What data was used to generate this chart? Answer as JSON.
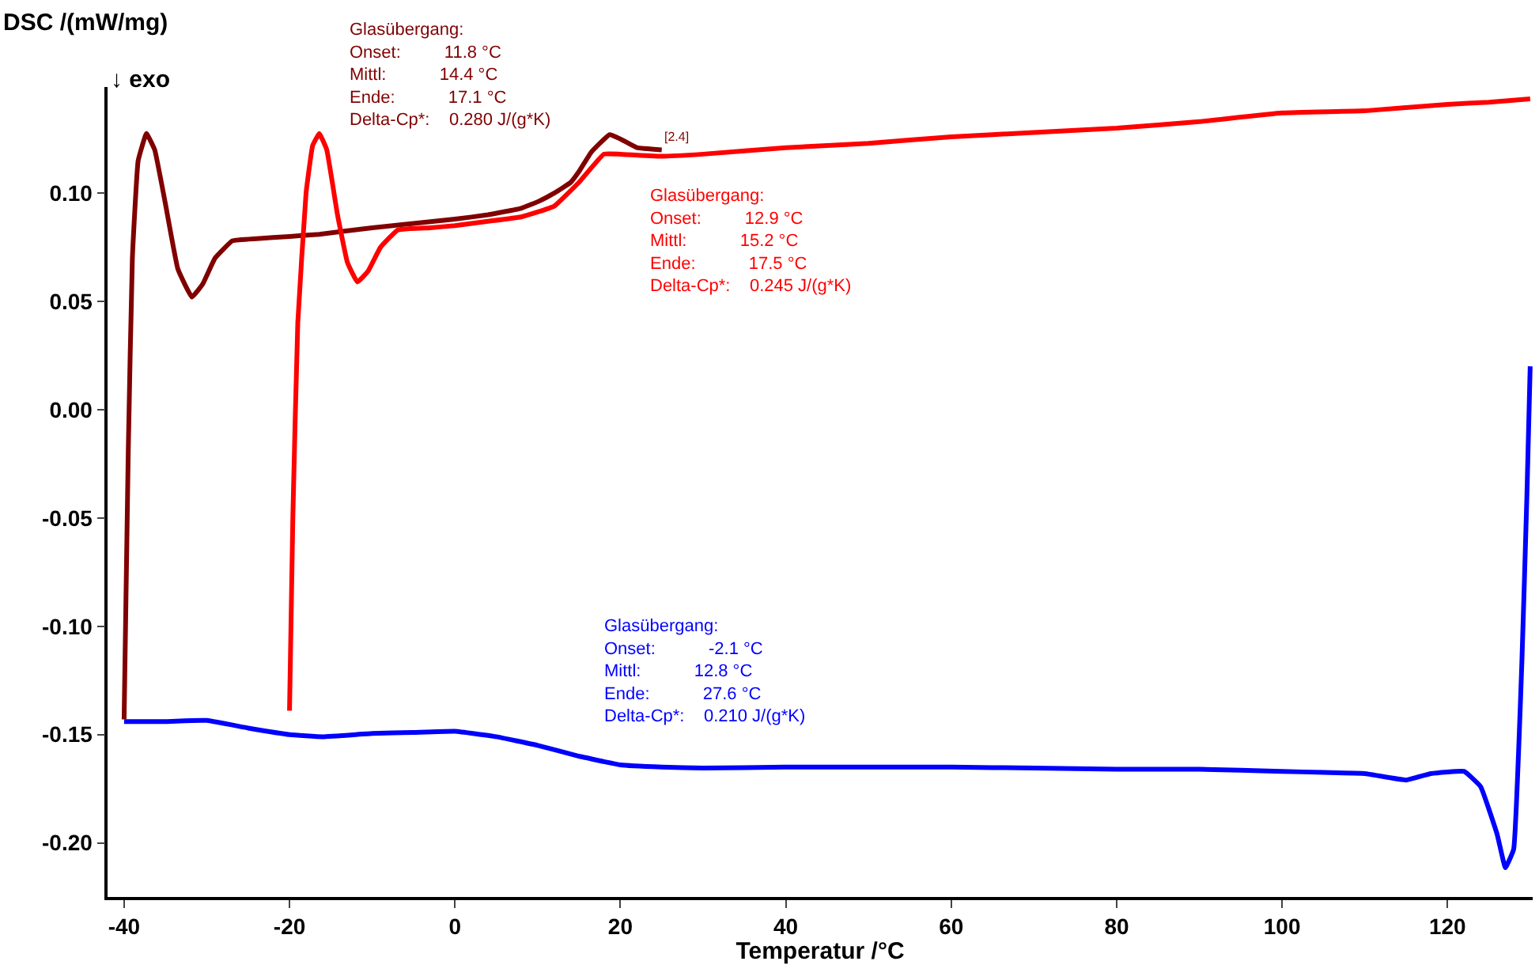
{
  "chart_data": {
    "type": "line",
    "xlabel": "Temperatur /°C",
    "ylabel": "DSC /(mW/mg)",
    "xlim": [
      -42,
      130.3
    ],
    "ylim": [
      -0.225,
      0.149
    ],
    "xticks": [
      -40,
      -20,
      0,
      20,
      40,
      60,
      80,
      100,
      120
    ],
    "yticks": [
      {
        "value": -0.2,
        "label": "-0.20"
      },
      {
        "value": -0.15,
        "label": "-0.15"
      },
      {
        "value": -0.1,
        "label": "-0.10"
      },
      {
        "value": -0.05,
        "label": "-0.05"
      },
      {
        "value": 0,
        "label": "0.00"
      },
      {
        "value": 0.05,
        "label": "0.05"
      },
      {
        "value": 0.1,
        "label": "0.10"
      }
    ],
    "marker": "none",
    "line_style": "solid",
    "series": [
      {
        "color": "#800000",
        "x": [
          -40,
          -39.5,
          -39,
          -38.3,
          -37.3,
          -36.3,
          -35,
          -33.5,
          -31.8,
          -30.5,
          -29,
          -26.9,
          -24,
          -20,
          -16.4,
          -10,
          -5,
          0,
          4,
          8,
          10,
          12,
          14,
          15,
          16.5,
          18.7,
          20,
          22,
          25
        ],
        "values": [
          -0.143,
          -0.02,
          0.07,
          0.115,
          0.1275,
          0.12,
          0.095,
          0.065,
          0.052,
          0.058,
          0.07,
          0.078,
          0.079,
          0.08,
          0.081,
          0.084,
          0.086,
          0.088,
          0.09,
          0.093,
          0.096,
          0.1,
          0.105,
          0.11,
          0.119,
          0.127,
          0.125,
          0.121,
          0.12
        ]
      },
      {
        "color": "#ff0000",
        "x": [
          -20,
          -19.6,
          -19,
          -18,
          -17.2,
          -16.4,
          -15.5,
          -14.2,
          -13,
          -11.8,
          -10.5,
          -9,
          -6.9,
          -3,
          0,
          4,
          8,
          12,
          15,
          18,
          20,
          25,
          30,
          40,
          50,
          60,
          70,
          80,
          90,
          100,
          110,
          120,
          125,
          130
        ],
        "values": [
          -0.139,
          -0.05,
          0.04,
          0.1,
          0.122,
          0.1275,
          0.12,
          0.09,
          0.068,
          0.059,
          0.064,
          0.075,
          0.083,
          0.084,
          0.085,
          0.087,
          0.089,
          0.094,
          0.105,
          0.118,
          0.118,
          0.117,
          0.118,
          0.121,
          0.123,
          0.126,
          0.128,
          0.13,
          0.133,
          0.137,
          0.138,
          0.141,
          0.142,
          0.1435
        ]
      },
      {
        "color": "#0000ff",
        "x": [
          -40,
          -35,
          -30,
          -25,
          -20,
          -16,
          -10,
          -5,
          0,
          5,
          10,
          15,
          20,
          25,
          30,
          40,
          50,
          60,
          70,
          80,
          90,
          100,
          105,
          110,
          115,
          118,
          122,
          124,
          126,
          127,
          128,
          129,
          129.6,
          130
        ],
        "values": [
          -0.144,
          -0.144,
          -0.1435,
          -0.147,
          -0.15,
          -0.151,
          -0.1495,
          -0.149,
          -0.1485,
          -0.151,
          -0.155,
          -0.16,
          -0.164,
          -0.165,
          -0.1655,
          -0.165,
          -0.165,
          -0.165,
          -0.1655,
          -0.166,
          -0.166,
          -0.167,
          -0.1675,
          -0.168,
          -0.171,
          -0.168,
          -0.167,
          -0.174,
          -0.196,
          -0.2115,
          -0.203,
          -0.116,
          -0.04,
          0.02
        ]
      }
    ],
    "annotations": [
      "↓ exo",
      "Glasübergang:\nOnset:         11.8 °C\nMittl:           14.4 °C\nEnde:           17.1 °C\nDelta-Cp*:    0.280 J/(g*K)",
      "[2.4]",
      "Glasübergang:\nOnset:         12.9 °C\nMittl:           15.2 °C\nEnde:           17.5 °C\nDelta-Cp*:    0.245 J/(g*K)",
      "Glasübergang:\nOnset:           -2.1 °C\nMittl:           12.8 °C\nEnde:           27.6 °C\nDelta-Cp*:    0.210 J/(g*K)"
    ]
  }
}
